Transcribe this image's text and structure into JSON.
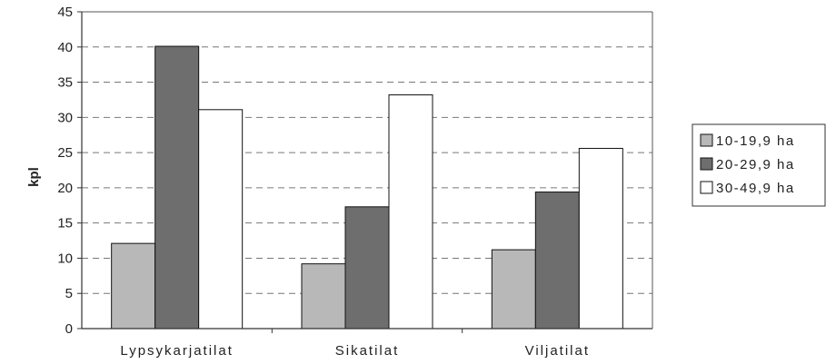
{
  "chart_data": {
    "type": "bar",
    "categories": [
      "Lypsykarjatilat",
      "Sikatilat",
      "Viljatilat"
    ],
    "series": [
      {
        "name": "10-19,9 ha",
        "values": [
          12.1,
          9.2,
          11.2
        ],
        "color": "#b8b8b8"
      },
      {
        "name": "20-29,9 ha",
        "values": [
          40.1,
          17.3,
          19.4
        ],
        "color": "#6e6e6e"
      },
      {
        "name": "30-49,9 ha",
        "values": [
          31.1,
          33.2,
          25.6
        ],
        "color": "#ffffff"
      }
    ],
    "ylabel": "kpl",
    "ylim": [
      0,
      45
    ],
    "yticks": [
      0,
      5,
      10,
      15,
      20,
      25,
      30,
      35,
      40,
      45
    ],
    "grid": "dashed-horizontal",
    "legend_position": "right"
  }
}
